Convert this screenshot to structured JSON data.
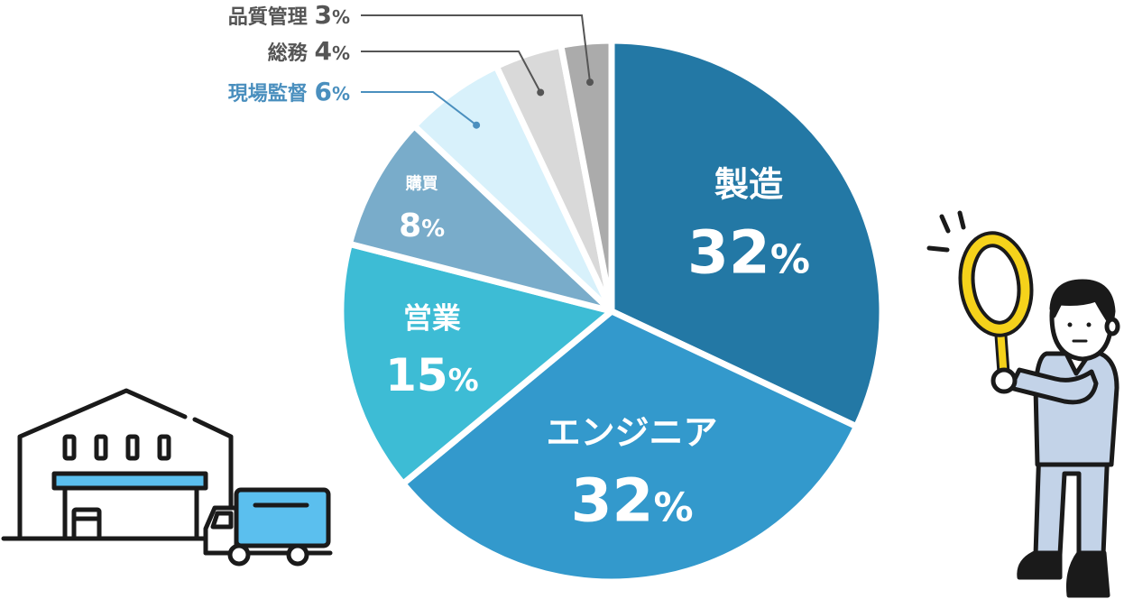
{
  "chart_data": {
    "type": "pie",
    "slices": [
      {
        "name": "製造",
        "value": 32,
        "pct_num": "32",
        "pct_unit": "%",
        "color": "#2378a5",
        "text_color": "#ffffff",
        "label_style": "inside-large"
      },
      {
        "name": "エンジニア",
        "value": 32,
        "pct_num": "32",
        "pct_unit": "%",
        "color": "#3399cc",
        "text_color": "#ffffff",
        "label_style": "inside-large"
      },
      {
        "name": "営業",
        "value": 15,
        "pct_num": "15",
        "pct_unit": "%",
        "color": "#3dbcd5",
        "text_color": "#ffffff",
        "label_style": "inside-medium"
      },
      {
        "name": "購買",
        "value": 8,
        "pct_num": "8",
        "pct_unit": "%",
        "color": "#79acca",
        "text_color": "#ffffff",
        "label_style": "inside-small"
      },
      {
        "name": "現場監督",
        "value": 6,
        "pct_num": "6",
        "pct_unit": "%",
        "color": "#d8f1fb",
        "text_color": "#4a8fbe",
        "label_style": "outside"
      },
      {
        "name": "総務",
        "value": 4,
        "pct_num": "4",
        "pct_unit": "%",
        "color": "#d9d9d9",
        "text_color": "#555555",
        "label_style": "outside"
      },
      {
        "name": "品質管理",
        "value": 3,
        "pct_num": "3",
        "pct_unit": "%",
        "color": "#ababab",
        "text_color": "#555555",
        "label_style": "outside"
      }
    ],
    "start_angle_deg": 0,
    "direction": "clockwise"
  },
  "illustrations": {
    "left": "factory-with-truck-icon",
    "right": "person-with-magnifying-glass-icon"
  },
  "colors": {
    "line": "#1a1a1a",
    "truck_blue": "#5bbfee",
    "factory_stripe": "#5bbfee",
    "uniform": "#c3d3e8",
    "magnifier": "#f5d21b"
  }
}
